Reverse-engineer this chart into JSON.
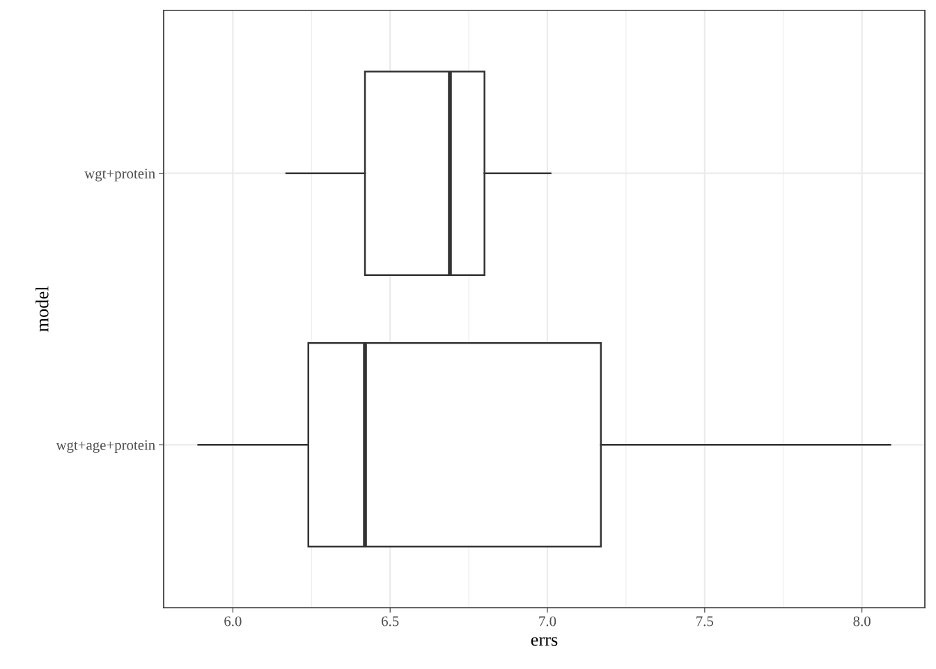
{
  "chart_data": {
    "type": "box",
    "orientation": "horizontal",
    "xlabel": "errs",
    "ylabel": "model",
    "categories": [
      "wgt+protein",
      "wgt+age+protein"
    ],
    "boxes": [
      {
        "low": 6.17,
        "q1": 6.42,
        "median": 6.69,
        "q3": 6.8,
        "high": 7.01
      },
      {
        "low": 5.89,
        "q1": 6.24,
        "median": 6.42,
        "q3": 7.17,
        "high": 8.09
      }
    ],
    "xlim": [
      5.78,
      8.2
    ],
    "xticks": [
      {
        "value": 6,
        "label": "6.0"
      },
      {
        "value": 6.25,
        "label": null
      },
      6.5,
      {
        "value": 6.75,
        "label": null
      },
      {
        "value": 7,
        "label": "7.0"
      },
      {
        "value": 7.25,
        "label": null
      },
      7.5,
      {
        "value": 7.75,
        "label": null
      },
      {
        "value": 8,
        "label": "8.0"
      }
    ],
    "grid": true
  }
}
